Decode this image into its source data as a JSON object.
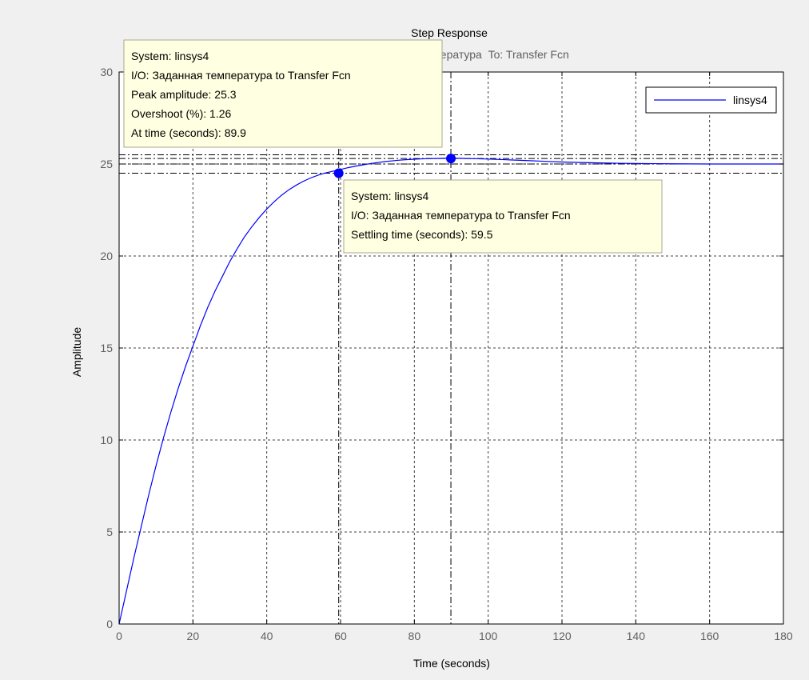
{
  "chart_data": {
    "type": "line",
    "title": "Step Response",
    "subtitle": "From: Заданная температура  To: Transfer Fcn",
    "xlabel": "Time (seconds)",
    "ylabel": "Amplitude",
    "xlim": [
      0,
      180
    ],
    "ylim": [
      0,
      30
    ],
    "xticks": [
      0,
      20,
      40,
      60,
      80,
      100,
      120,
      140,
      160,
      180
    ],
    "yticks": [
      0,
      5,
      10,
      15,
      20,
      25,
      30
    ],
    "grid": true,
    "legend": {
      "position": "top-right",
      "entries": [
        "linsys4"
      ]
    },
    "colors": {
      "series": "#0000ff",
      "axes": "#000000",
      "grid": "#404040",
      "datatip_bg": "#ffffe1",
      "datatip_border": "#a8a890"
    },
    "series": [
      {
        "name": "linsys4",
        "x": [
          0,
          2,
          4,
          6,
          8,
          10,
          12,
          14,
          16,
          18,
          20,
          22,
          24,
          26,
          28,
          30,
          32,
          34,
          36,
          38,
          40,
          42,
          44,
          46,
          48,
          50,
          52,
          54,
          56,
          58,
          60,
          62,
          64,
          66,
          68,
          70,
          72,
          74,
          76,
          78,
          80,
          82,
          84,
          86,
          88,
          90,
          92,
          94,
          96,
          98,
          100,
          105,
          110,
          115,
          120,
          125,
          130,
          135,
          140,
          145,
          150,
          160,
          170,
          180
        ],
        "y": [
          0,
          1.8,
          3.6,
          5.3,
          7.0,
          8.6,
          10.1,
          11.5,
          12.8,
          14.0,
          15.1,
          16.2,
          17.2,
          18.1,
          18.9,
          19.7,
          20.4,
          21.05,
          21.6,
          22.1,
          22.55,
          22.95,
          23.3,
          23.6,
          23.85,
          24.07,
          24.25,
          24.4,
          24.52,
          24.61,
          24.7,
          24.8,
          24.88,
          24.95,
          25.02,
          25.08,
          25.13,
          25.17,
          25.21,
          25.24,
          25.26,
          25.28,
          25.29,
          25.3,
          25.31,
          25.31,
          25.31,
          25.3,
          25.29,
          25.28,
          25.27,
          25.23,
          25.19,
          25.15,
          25.11,
          25.08,
          25.06,
          25.04,
          25.03,
          25.02,
          25.01,
          25.0,
          25.0,
          25.0
        ]
      }
    ],
    "reference_lines": {
      "horizontal": [
        25.5,
        25.3,
        25.0,
        24.5
      ],
      "vertical": [
        59.5,
        89.9
      ]
    },
    "markers": [
      {
        "label": "settling",
        "x": 59.5,
        "y": 24.5
      },
      {
        "label": "peak",
        "x": 89.9,
        "y": 25.3
      }
    ],
    "datatips": [
      {
        "id": "peak",
        "lines": [
          "System: linsys4",
          "I/O: Заданная температура to Transfer Fcn",
          "Peak amplitude: 25.3",
          "Overshoot (%): 1.26",
          "At time (seconds): 89.9"
        ]
      },
      {
        "id": "settling",
        "lines": [
          "System: linsys4",
          "I/O: Заданная температура to Transfer Fcn",
          "Settling time (seconds): 59.5"
        ]
      }
    ]
  }
}
